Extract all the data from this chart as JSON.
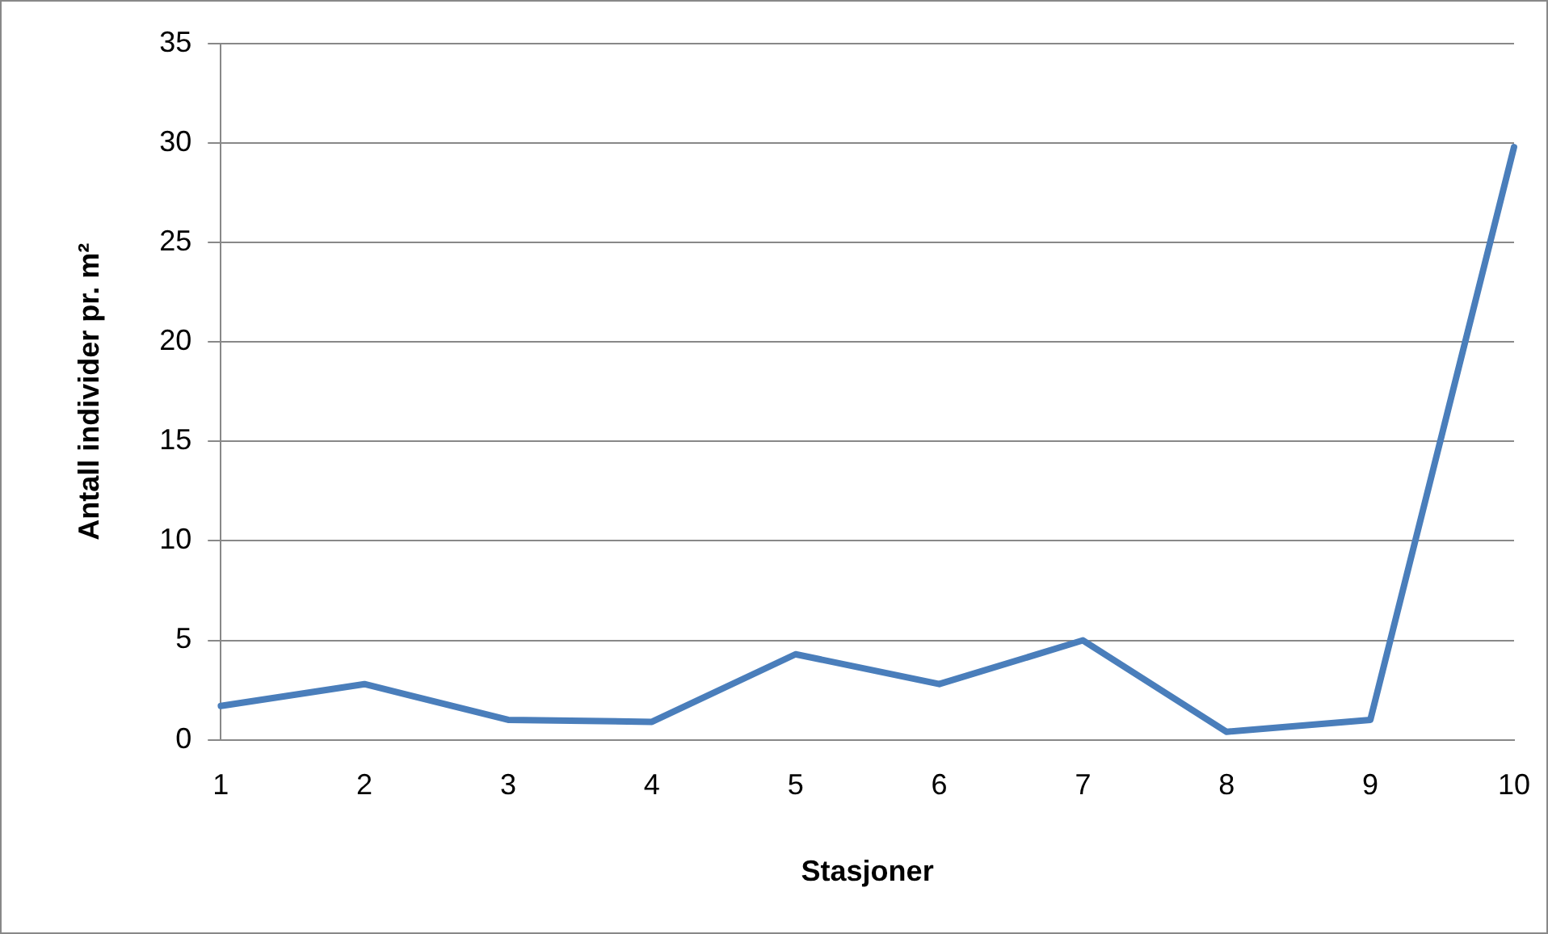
{
  "chart_data": {
    "type": "line",
    "xlabel": "Stasjoner",
    "ylabel": "Antall individer pr. m²",
    "categories": [
      "1",
      "2",
      "3",
      "4",
      "5",
      "6",
      "7",
      "8",
      "9",
      "10"
    ],
    "series": [
      {
        "color": "#4a7ebb",
        "values": [
          1.7,
          2.8,
          1.0,
          0.9,
          4.3,
          2.8,
          5.0,
          0.4,
          1.0,
          29.8
        ]
      }
    ],
    "ylim": [
      0,
      35
    ],
    "yticks": [
      0,
      5,
      10,
      15,
      20,
      25,
      30,
      35
    ],
    "grid": "y",
    "legend": false,
    "marker": "none",
    "line_style": "solid"
  }
}
